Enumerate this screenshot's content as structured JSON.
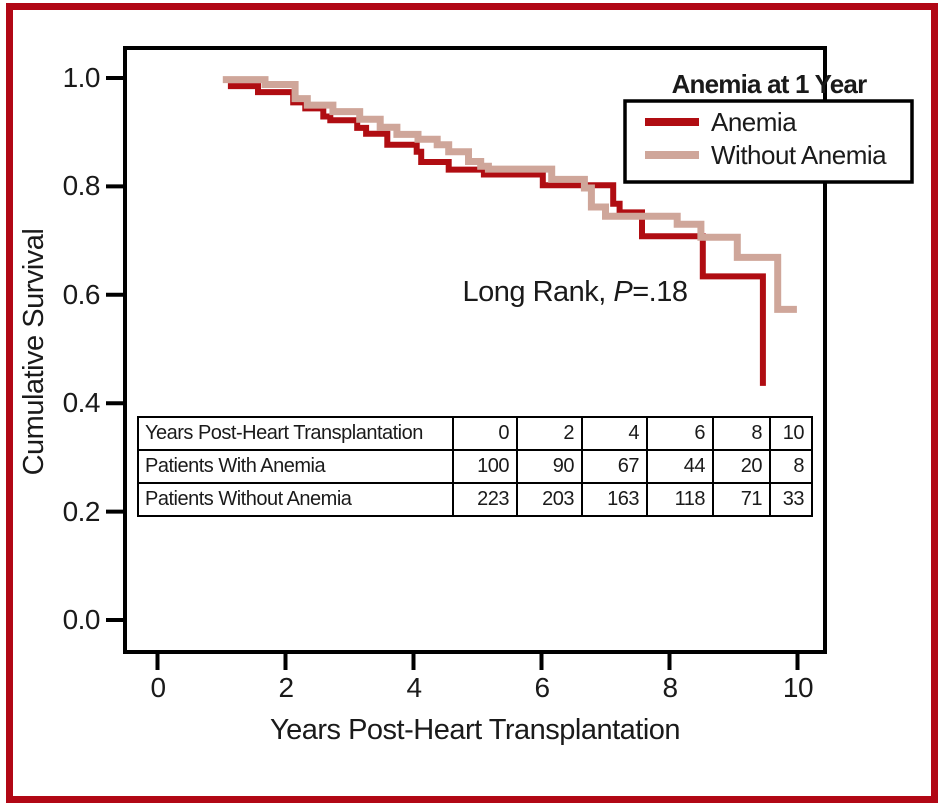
{
  "figure": {
    "border_color": "#b10715",
    "background": "#ffffff"
  },
  "chart_data": {
    "type": "line",
    "subtype": "kaplan-meier-step",
    "title": "",
    "xlabel": "Years Post-Heart Transplantation",
    "ylabel": "Cumulative Survival",
    "xlim": [
      0,
      10.4
    ],
    "ylim": [
      0.0,
      1.05
    ],
    "grid": false,
    "legend_position": "top-right-inside",
    "xticks": [
      "0",
      "2",
      "4",
      "6",
      "8",
      "10"
    ],
    "yticks": [
      "1.0",
      "0.8",
      "0.6",
      "0.4",
      "0.2",
      "0.0"
    ],
    "xtick_values": [
      0,
      2,
      4,
      6,
      8,
      10
    ],
    "ytick_values": [
      1.0,
      0.8,
      0.6,
      0.4,
      0.2,
      0.0
    ],
    "annotation": {
      "prefix": "Long Rank, ",
      "p": "P",
      "suffix": "=.18"
    },
    "legend": {
      "title": "Anemia at 1 Year",
      "entries": [
        {
          "label": "Anemia",
          "color": "#b00d12"
        },
        {
          "label": "Without Anemia",
          "color": "#cfa69a"
        }
      ]
    },
    "series": [
      {
        "name": "Anemia",
        "color": "#b00d12",
        "end_x": 9.46,
        "steps": [
          [
            1.1,
            0.985
          ],
          [
            1.57,
            0.974
          ],
          [
            2.12,
            0.955
          ],
          [
            2.31,
            0.944
          ],
          [
            2.59,
            0.929
          ],
          [
            2.7,
            0.922
          ],
          [
            3.12,
            0.908
          ],
          [
            3.26,
            0.897
          ],
          [
            3.59,
            0.877
          ],
          [
            4.05,
            0.864
          ],
          [
            4.12,
            0.845
          ],
          [
            4.55,
            0.831
          ],
          [
            5.1,
            0.822
          ],
          [
            6.02,
            0.802
          ],
          [
            7.12,
            0.768
          ],
          [
            7.22,
            0.752
          ],
          [
            7.57,
            0.708
          ],
          [
            8.52,
            0.634
          ],
          [
            9.46,
            0.432
          ]
        ]
      },
      {
        "name": "Without Anemia",
        "color": "#cfa69a",
        "end_x": 9.99,
        "steps": [
          [
            1.02,
            0.997
          ],
          [
            1.68,
            0.988
          ],
          [
            2.15,
            0.962
          ],
          [
            2.34,
            0.95
          ],
          [
            2.74,
            0.938
          ],
          [
            3.16,
            0.924
          ],
          [
            3.48,
            0.909
          ],
          [
            3.74,
            0.896
          ],
          [
            4.07,
            0.887
          ],
          [
            4.37,
            0.877
          ],
          [
            4.55,
            0.864
          ],
          [
            4.86,
            0.846
          ],
          [
            5.05,
            0.837
          ],
          [
            5.17,
            0.832
          ],
          [
            6.16,
            0.813
          ],
          [
            6.67,
            0.797
          ],
          [
            6.78,
            0.762
          ],
          [
            7.0,
            0.745
          ],
          [
            8.12,
            0.73
          ],
          [
            8.49,
            0.706
          ],
          [
            9.06,
            0.669
          ],
          [
            9.69,
            0.573
          ]
        ]
      }
    ],
    "risk_table": {
      "header": [
        "Years Post-Heart Transplantation",
        "0",
        "2",
        "4",
        "6",
        "8",
        "10"
      ],
      "rows": [
        [
          "Patients With Anemia",
          "100",
          "90",
          "67",
          "44",
          "20",
          "8"
        ],
        [
          "Patients Without Anemia",
          "223",
          "203",
          "163",
          "118",
          "71",
          "33"
        ]
      ]
    }
  }
}
